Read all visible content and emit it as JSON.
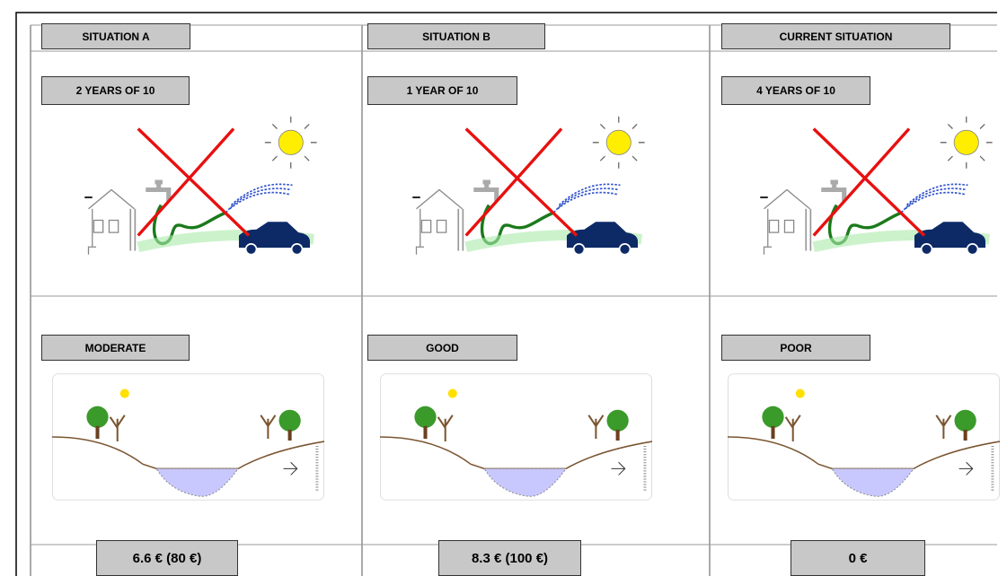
{
  "columns": [
    {
      "header": "SITUATION A",
      "frequency": "2 YEARS OF 10",
      "status": "MODERATE",
      "price": "6.6 € (80 €)"
    },
    {
      "header": "SITUATION B",
      "frequency": "1 YEAR OF 10",
      "status": "GOOD",
      "price": "8.3 € (100 €)"
    },
    {
      "header": "CURRENT SITUATION",
      "frequency": "4 YEARS OF 10",
      "status": "POOR",
      "price": "0 €"
    }
  ]
}
